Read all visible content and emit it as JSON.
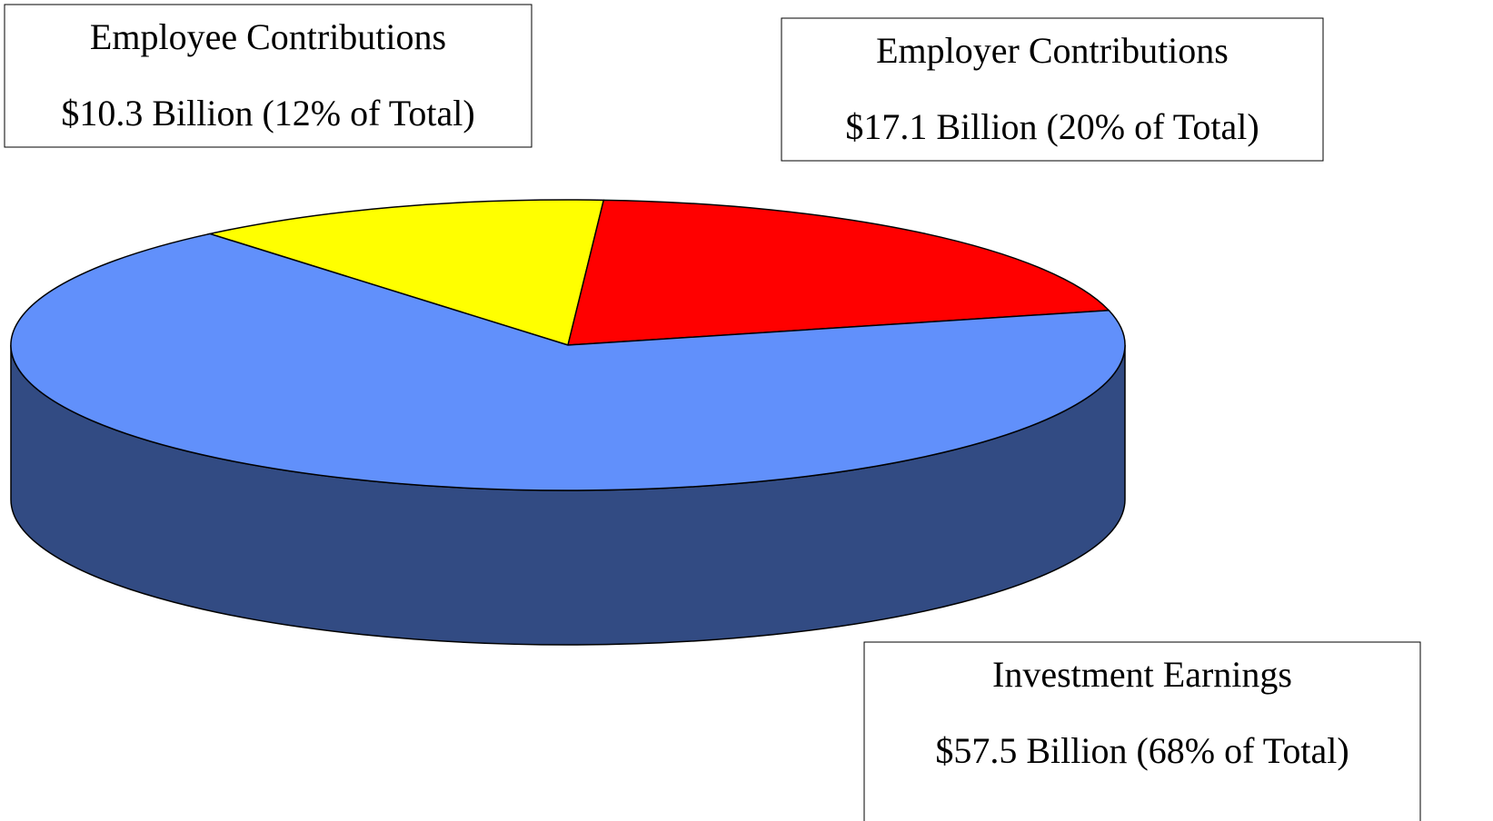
{
  "chart_data": {
    "type": "pie3d",
    "categories": [
      "Employee Contributions",
      "Employer Contributions",
      "Investment Earnings"
    ],
    "values": [
      10.3,
      17.1,
      57.5
    ],
    "value_labels": [
      "$10.3 Billion (12% of Total)",
      "$17.1 Billion (20% of Total)",
      "$57.5 Billion (68% of Total)"
    ],
    "colors": [
      "#ffff00",
      "#ff0000",
      "#6190fb"
    ]
  }
}
